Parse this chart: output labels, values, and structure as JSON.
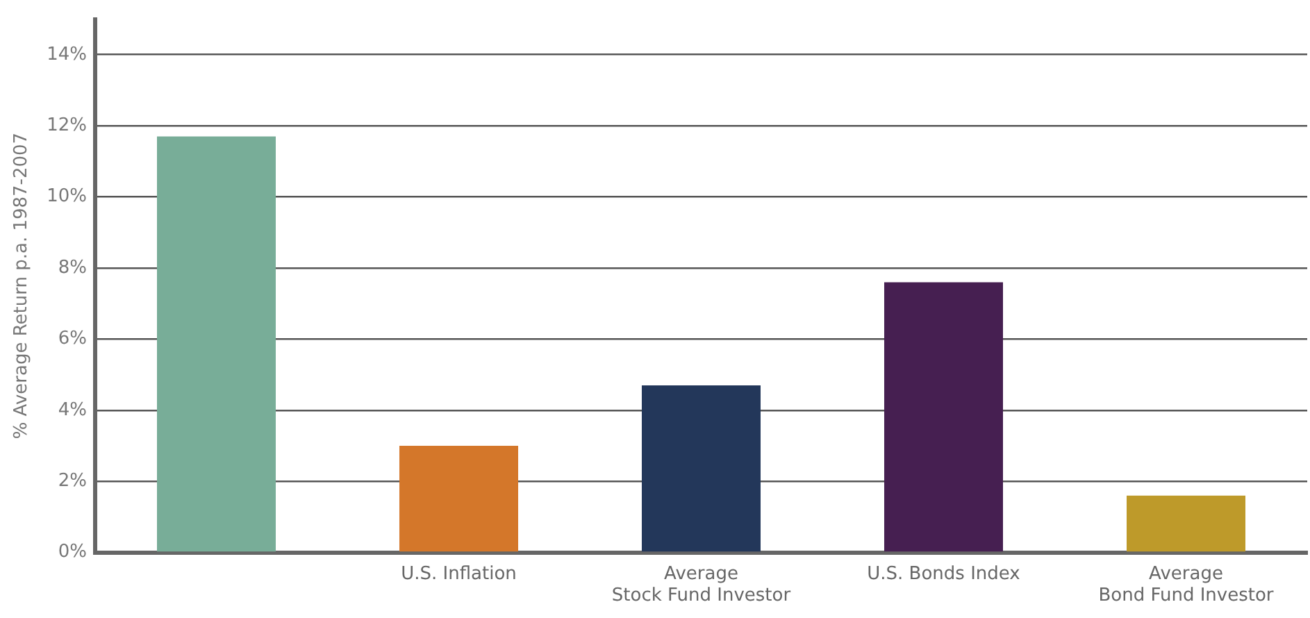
{
  "chart_data": {
    "type": "bar",
    "ylabel": "% Average Return p.a. 1987-2007",
    "categories": [
      null,
      "U.S. Inflation",
      "Average\nStock Fund Investor",
      "U.S. Bonds Index",
      "Average\nBond Fund Investor"
    ],
    "values": [
      11.7,
      3.0,
      4.7,
      7.6,
      1.6
    ],
    "colors": [
      "#78ad98",
      "#d4772a",
      "#23375a",
      "#461f51",
      "#be9a2a"
    ],
    "ylim": [
      0,
      15
    ],
    "yticks": [
      {
        "value": 0,
        "label": "0%"
      },
      {
        "value": 2,
        "label": "2%"
      },
      {
        "value": 4,
        "label": "4%"
      },
      {
        "value": 6,
        "label": "6%"
      },
      {
        "value": 8,
        "label": "8%"
      },
      {
        "value": 10,
        "label": "10%"
      },
      {
        "value": 12,
        "label": "12%"
      },
      {
        "value": 14,
        "label": "14%"
      }
    ],
    "grid": "y",
    "legend": false
  }
}
